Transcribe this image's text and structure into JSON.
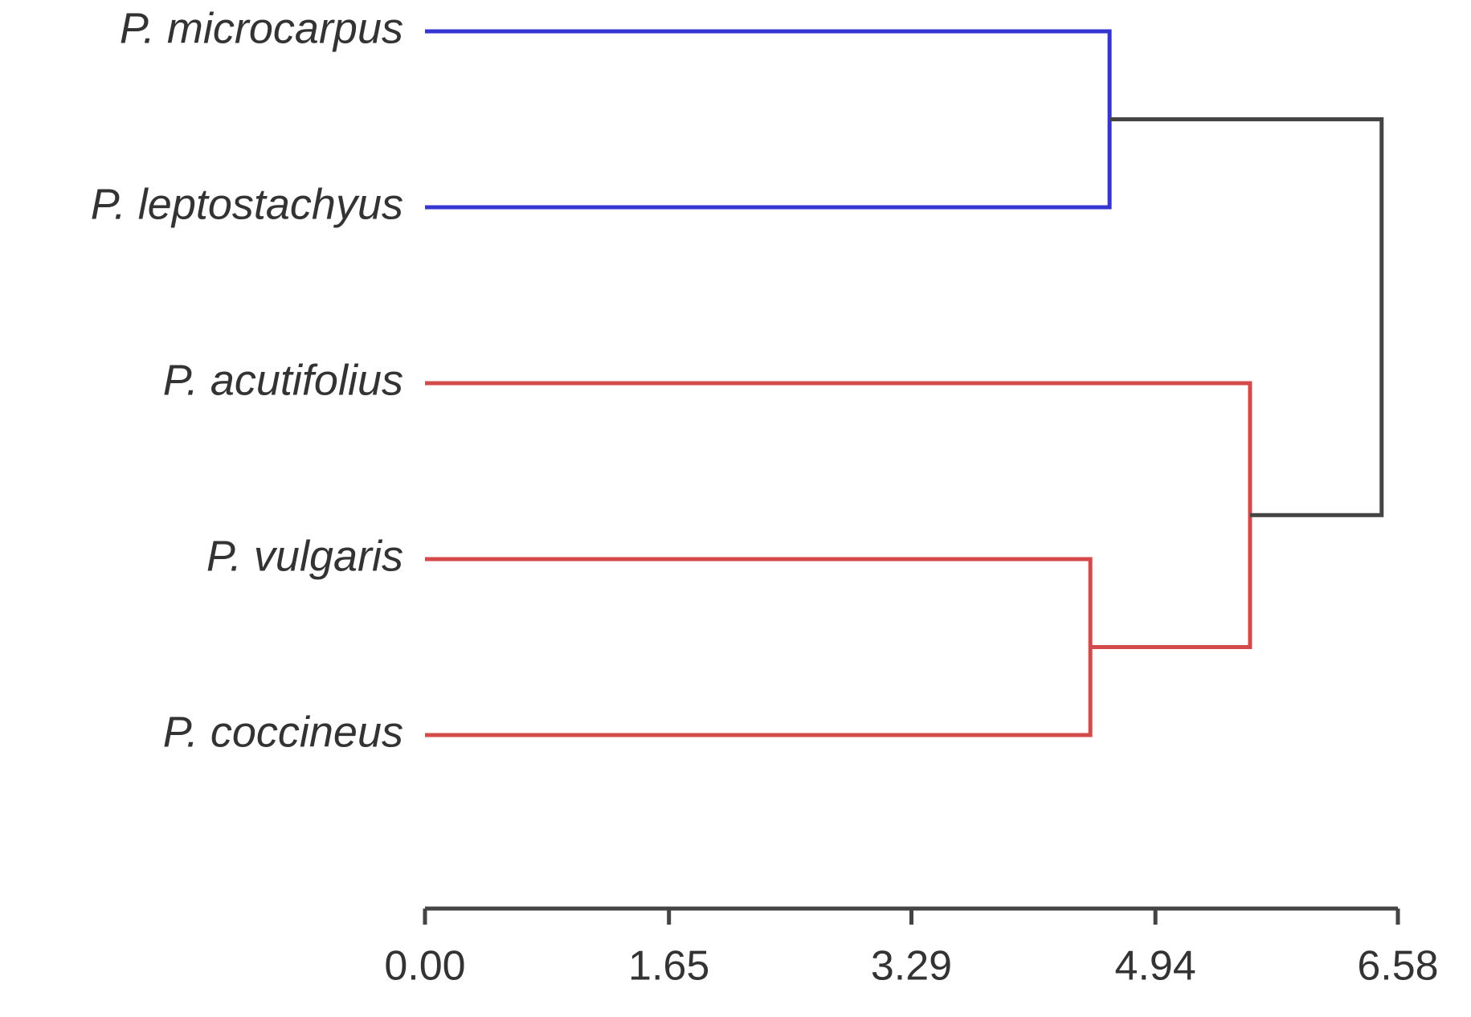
{
  "chart_data": {
    "type": "dendrogram",
    "tree": {
      "height": 6.47,
      "color": "#444444",
      "children": [
        {
          "height": 4.63,
          "color": "#3535d0",
          "children": [
            {
              "label": "P. microcarpus"
            },
            {
              "label": "P. leptostachyus"
            }
          ]
        },
        {
          "height": 5.58,
          "color": "#d44a4a",
          "children": [
            {
              "label": "P. acutifolius"
            },
            {
              "height": 4.5,
              "color": "#d44a4a",
              "children": [
                {
                  "label": "P. vulgaris"
                },
                {
                  "label": "P. coccineus"
                }
              ]
            }
          ]
        }
      ]
    },
    "xlim": [
      0,
      6.58
    ],
    "xticks": [
      {
        "value": 0,
        "label": "0.00"
      },
      1.65,
      3.29,
      4.94,
      6.58
    ]
  }
}
